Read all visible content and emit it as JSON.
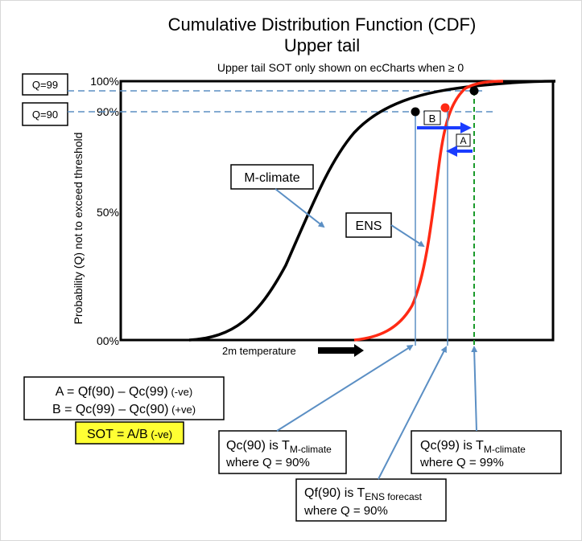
{
  "title": {
    "line1": "Cumulative Distribution Function (CDF)",
    "line2": "Upper tail",
    "subtitle": "Upper tail SOT only shown on ecCharts when ≥ 0"
  },
  "q_boxes": {
    "q99": "Q=99",
    "q90": "Q=90"
  },
  "axis": {
    "ylabel": "Probability (Q) not to exceed threshold",
    "ticks": [
      "100%",
      "90%",
      "50%",
      "00%"
    ],
    "xlabel": "2m temperature"
  },
  "labels": {
    "mclimate": "M-climate",
    "ens": "ENS",
    "a": "A",
    "b": "B"
  },
  "formulas": {
    "a_main": "A = Qf(90) – Qc(99)",
    "a_sign": " (-ve)",
    "b_main": "B = Qc(99) – Qc(90)",
    "b_sign": " (+ve)",
    "sot_main": "SOT = A/B",
    "sot_sign": " (-ve)"
  },
  "callouts": {
    "qc90": {
      "prefix": "Qc(90) is T",
      "sub": "M-climate",
      "line2": "where Q = 90%"
    },
    "qc99": {
      "prefix": "Qc(99) is T",
      "sub": "M-climate",
      "line2": "where Q = 99%"
    },
    "qf90": {
      "prefix": "Qf(90) is T",
      "sub": "ENS forecast",
      "line2": "where Q = 90%"
    }
  },
  "colors": {
    "mclimate_curve": "#000000",
    "ens_curve": "#ff2a14",
    "guide_lines": "#5b8fc4",
    "threshold_line": "#1a9a2a",
    "arrows": "#1a3cff",
    "sot_highlight": "#ffff33"
  }
}
